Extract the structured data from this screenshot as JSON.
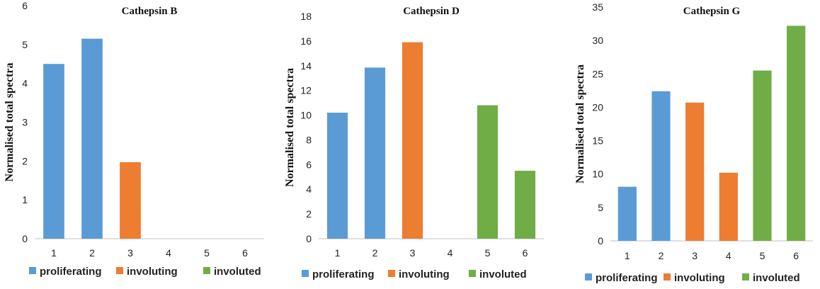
{
  "legend": [
    {
      "label": "proliferating",
      "color": "#5b9bd5"
    },
    {
      "label": "involuting",
      "color": "#ed7d31"
    },
    {
      "label": "involuted",
      "color": "#70ad47"
    }
  ],
  "chart_data": [
    {
      "type": "bar",
      "title": "Cathepsin B",
      "xlabel": "",
      "ylabel": "Normalised total spectra",
      "categories": [
        "1",
        "2",
        "3",
        "4",
        "5",
        "6"
      ],
      "values": [
        4.5,
        5.15,
        1.97,
        0,
        0,
        0
      ],
      "groups": [
        "proliferating",
        "proliferating",
        "involuting",
        "involuting",
        "involuted",
        "involuted"
      ],
      "ylim": [
        0,
        6
      ],
      "yticks": [
        "0",
        "1",
        "2",
        "3",
        "4",
        "5",
        "6"
      ],
      "grid": false,
      "legend_position": "bottom"
    },
    {
      "type": "bar",
      "title": "Cathepsin D",
      "xlabel": "",
      "ylabel": "Normalised total spectra",
      "categories": [
        "1",
        "2",
        "3",
        "4",
        "5",
        "6"
      ],
      "values": [
        10.2,
        13.85,
        15.9,
        0,
        10.8,
        5.5
      ],
      "groups": [
        "proliferating",
        "proliferating",
        "involuting",
        "involuting",
        "involuted",
        "involuted"
      ],
      "ylim": [
        0,
        18
      ],
      "yticks": [
        "0",
        "2",
        "4",
        "6",
        "8",
        "10",
        "12",
        "14",
        "16",
        "18"
      ],
      "grid": false,
      "legend_position": "bottom"
    },
    {
      "type": "bar",
      "title": "Cathepsin G",
      "xlabel": "",
      "ylabel": "Normalised total spectra",
      "categories": [
        "1",
        "2",
        "3",
        "4",
        "5",
        "6"
      ],
      "values": [
        8.1,
        22.4,
        20.7,
        10.2,
        25.5,
        32.2
      ],
      "groups": [
        "proliferating",
        "proliferating",
        "involuting",
        "involuting",
        "involuted",
        "involuted"
      ],
      "ylim": [
        0,
        35
      ],
      "yticks": [
        "0",
        "5",
        "10",
        "15",
        "20",
        "25",
        "30",
        "35"
      ],
      "grid": false,
      "legend_position": "bottom"
    }
  ]
}
